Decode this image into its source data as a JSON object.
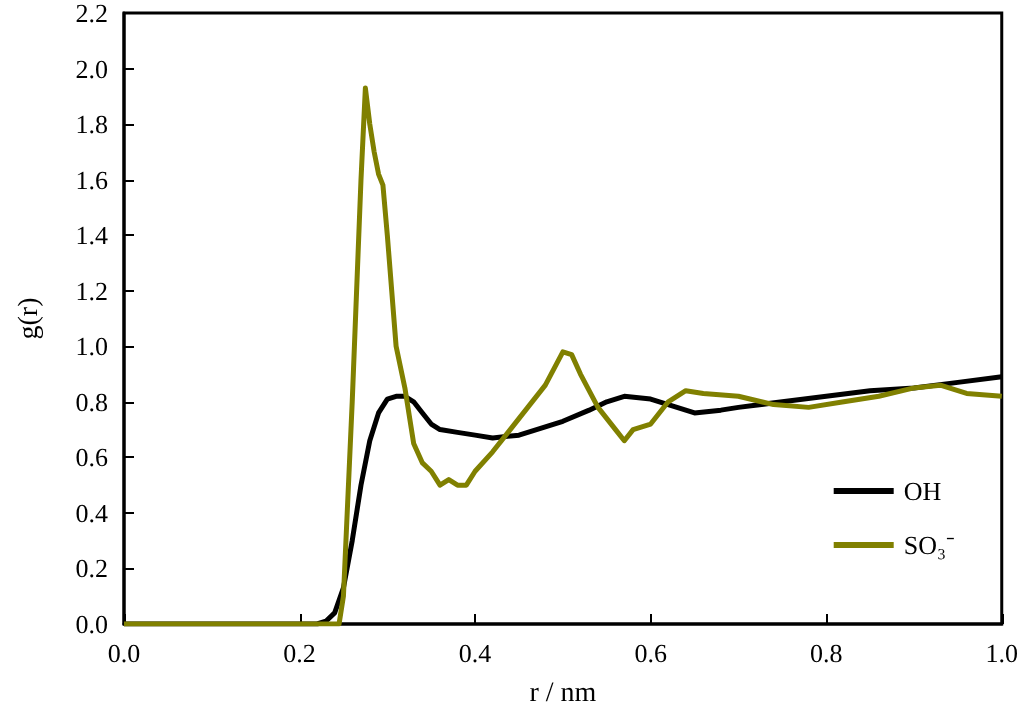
{
  "chart_data": {
    "type": "line",
    "xlabel": "r / nm",
    "ylabel": "g(r)",
    "xlim": [
      0,
      1
    ],
    "ylim": [
      0,
      2.2
    ],
    "xticks": [
      {
        "value": 0,
        "label": "0.0"
      },
      {
        "value": 0.2,
        "label": "0.2"
      },
      {
        "value": 0.4,
        "label": "0.4"
      },
      {
        "value": 0.6,
        "label": "0.6"
      },
      {
        "value": 0.8,
        "label": "0.8"
      },
      {
        "value": 1,
        "label": "1.0"
      }
    ],
    "yticks": [
      {
        "value": 0,
        "label": "0.0"
      },
      {
        "value": 0.2,
        "label": "0.2"
      },
      {
        "value": 0.4,
        "label": "0.4"
      },
      {
        "value": 0.6,
        "label": "0.6"
      },
      {
        "value": 0.8,
        "label": "0.8"
      },
      {
        "value": 1,
        "label": "1.0"
      },
      {
        "value": 1.2,
        "label": "1.2"
      },
      {
        "value": 1.4,
        "label": "1.4"
      },
      {
        "value": 1.6,
        "label": "1.6"
      },
      {
        "value": 1.8,
        "label": "1.8"
      },
      {
        "value": 2,
        "label": "2.0"
      },
      {
        "value": 2.2,
        "label": "2.2"
      }
    ],
    "grid": false,
    "legend": "bottom right",
    "marker": "none",
    "line_style": "solid",
    "series": [
      {
        "name": "OH",
        "color": "#000000",
        "x": [
          0,
          0.22,
          0.23,
          0.24,
          0.25,
          0.26,
          0.27,
          0.28,
          0.29,
          0.3,
          0.31,
          0.32,
          0.33,
          0.34,
          0.35,
          0.36,
          0.38,
          0.4,
          0.42,
          0.45,
          0.48,
          0.5,
          0.53,
          0.55,
          0.57,
          0.6,
          0.62,
          0.65,
          0.68,
          0.7,
          0.75,
          0.8,
          0.85,
          0.9,
          0.95,
          1.0
        ],
        "values": [
          0,
          0,
          0.01,
          0.04,
          0.13,
          0.3,
          0.5,
          0.66,
          0.76,
          0.81,
          0.82,
          0.82,
          0.8,
          0.76,
          0.72,
          0.7,
          0.69,
          0.68,
          0.67,
          0.68,
          0.71,
          0.73,
          0.77,
          0.8,
          0.82,
          0.81,
          0.79,
          0.76,
          0.77,
          0.78,
          0.8,
          0.82,
          0.84,
          0.85,
          0.87,
          0.89
        ]
      },
      {
        "name": "SO₃⁻",
        "color": "#808000",
        "x": [
          0,
          0.245,
          0.25,
          0.26,
          0.27,
          0.275,
          0.28,
          0.285,
          0.29,
          0.295,
          0.3,
          0.31,
          0.32,
          0.33,
          0.34,
          0.35,
          0.36,
          0.37,
          0.38,
          0.39,
          0.4,
          0.42,
          0.44,
          0.46,
          0.48,
          0.5,
          0.51,
          0.52,
          0.54,
          0.56,
          0.57,
          0.58,
          0.6,
          0.62,
          0.64,
          0.66,
          0.7,
          0.74,
          0.78,
          0.82,
          0.86,
          0.9,
          0.93,
          0.96,
          1.0
        ],
        "values": [
          0,
          0,
          0.1,
          0.8,
          1.6,
          1.93,
          1.8,
          1.7,
          1.62,
          1.58,
          1.4,
          1.0,
          0.85,
          0.65,
          0.58,
          0.55,
          0.5,
          0.52,
          0.5,
          0.5,
          0.55,
          0.62,
          0.7,
          0.78,
          0.86,
          0.98,
          0.97,
          0.9,
          0.78,
          0.7,
          0.66,
          0.7,
          0.72,
          0.8,
          0.84,
          0.83,
          0.82,
          0.79,
          0.78,
          0.8,
          0.82,
          0.85,
          0.86,
          0.83,
          0.82
        ]
      }
    ]
  }
}
